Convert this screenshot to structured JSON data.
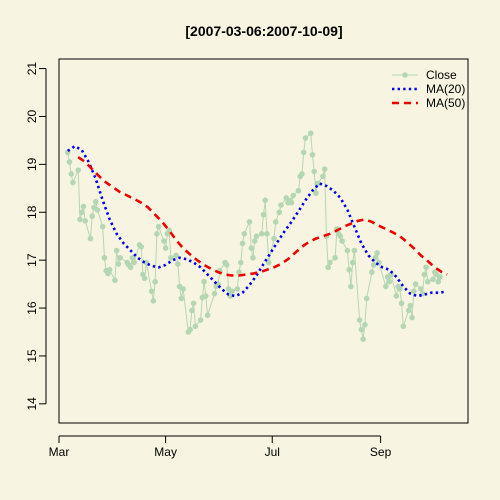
{
  "chart_data": {
    "type": "line",
    "title": "[2007-03-06:2007-10-09]",
    "xlabel": "",
    "ylabel": "",
    "xlim": [
      "2007-03-01",
      "2007-10-21"
    ],
    "ylim": [
      13.6,
      21.2
    ],
    "x_ticks": [
      {
        "date": "2007-03-01",
        "label": "Mar"
      },
      {
        "date": "2007-05-01",
        "label": "May"
      },
      {
        "date": "2007-07-01",
        "label": "Jul"
      },
      {
        "date": "2007-09-01",
        "label": "Sep"
      }
    ],
    "y_ticks": [
      14,
      15,
      16,
      17,
      18,
      19,
      20,
      21
    ],
    "legend": {
      "position": "top-right",
      "entries": [
        {
          "label": "Close",
          "style": "line-with-points",
          "color": "#B5D6B2"
        },
        {
          "label": "MA(20)",
          "style": "dotted",
          "color": "#0000EE"
        },
        {
          "label": "MA(50)",
          "style": "dashed",
          "color": "#EE0000"
        }
      ]
    },
    "series": [
      {
        "name": "Close",
        "color": "#B5D6B2",
        "points": [
          [
            "2007-03-06",
            19.25
          ],
          [
            "2007-03-07",
            19.05
          ],
          [
            "2007-03-08",
            18.8
          ],
          [
            "2007-03-09",
            18.62
          ],
          [
            "2007-03-12",
            18.88
          ],
          [
            "2007-03-13",
            17.85
          ],
          [
            "2007-03-14",
            18.0
          ],
          [
            "2007-03-15",
            18.12
          ],
          [
            "2007-03-16",
            17.82
          ],
          [
            "2007-03-19",
            17.45
          ],
          [
            "2007-03-20",
            17.92
          ],
          [
            "2007-03-21",
            18.1
          ],
          [
            "2007-03-22",
            18.22
          ],
          [
            "2007-03-23",
            18.05
          ],
          [
            "2007-03-26",
            17.7
          ],
          [
            "2007-03-27",
            17.05
          ],
          [
            "2007-03-28",
            16.78
          ],
          [
            "2007-03-29",
            16.72
          ],
          [
            "2007-03-30",
            16.8
          ],
          [
            "2007-04-02",
            16.58
          ],
          [
            "2007-04-03",
            17.2
          ],
          [
            "2007-04-04",
            16.92
          ],
          [
            "2007-04-05",
            17.05
          ],
          [
            "2007-04-09",
            16.95
          ],
          [
            "2007-04-10",
            16.9
          ],
          [
            "2007-04-11",
            16.85
          ],
          [
            "2007-04-12",
            17.05
          ],
          [
            "2007-04-13",
            16.95
          ],
          [
            "2007-04-16",
            17.32
          ],
          [
            "2007-04-17",
            17.28
          ],
          [
            "2007-04-18",
            16.7
          ],
          [
            "2007-04-19",
            16.62
          ],
          [
            "2007-04-20",
            16.95
          ],
          [
            "2007-04-23",
            16.35
          ],
          [
            "2007-04-24",
            16.15
          ],
          [
            "2007-04-25",
            16.55
          ],
          [
            "2007-04-26",
            17.55
          ],
          [
            "2007-04-27",
            17.7
          ],
          [
            "2007-04-30",
            17.4
          ],
          [
            "2007-05-01",
            17.25
          ],
          [
            "2007-05-02",
            17.55
          ],
          [
            "2007-05-03",
            17.62
          ],
          [
            "2007-05-04",
            17.05
          ],
          [
            "2007-05-07",
            17.1
          ],
          [
            "2007-05-08",
            16.92
          ],
          [
            "2007-05-09",
            16.45
          ],
          [
            "2007-05-10",
            16.2
          ],
          [
            "2007-05-11",
            16.4
          ],
          [
            "2007-05-14",
            15.5
          ],
          [
            "2007-05-15",
            15.55
          ],
          [
            "2007-05-16",
            15.95
          ],
          [
            "2007-05-17",
            16.1
          ],
          [
            "2007-05-18",
            15.62
          ],
          [
            "2007-05-21",
            15.75
          ],
          [
            "2007-05-22",
            16.22
          ],
          [
            "2007-05-23",
            16.55
          ],
          [
            "2007-05-24",
            16.25
          ],
          [
            "2007-05-25",
            15.85
          ],
          [
            "2007-05-29",
            16.3
          ],
          [
            "2007-05-30",
            16.45
          ],
          [
            "2007-05-31",
            16.5
          ],
          [
            "2007-06-01",
            16.78
          ],
          [
            "2007-06-04",
            16.95
          ],
          [
            "2007-06-05",
            16.9
          ],
          [
            "2007-06-06",
            16.4
          ],
          [
            "2007-06-07",
            16.25
          ],
          [
            "2007-06-08",
            16.35
          ],
          [
            "2007-06-11",
            16.4
          ],
          [
            "2007-06-12",
            16.75
          ],
          [
            "2007-06-13",
            16.95
          ],
          [
            "2007-06-14",
            17.35
          ],
          [
            "2007-06-15",
            17.55
          ],
          [
            "2007-06-18",
            17.8
          ],
          [
            "2007-06-19",
            17.25
          ],
          [
            "2007-06-20",
            17.05
          ],
          [
            "2007-06-21",
            17.4
          ],
          [
            "2007-06-22",
            17.5
          ],
          [
            "2007-06-25",
            17.55
          ],
          [
            "2007-06-26",
            17.95
          ],
          [
            "2007-06-27",
            18.25
          ],
          [
            "2007-06-28",
            17.55
          ],
          [
            "2007-06-29",
            16.95
          ],
          [
            "2007-07-02",
            17.45
          ],
          [
            "2007-07-03",
            17.8
          ],
          [
            "2007-07-05",
            18.0
          ],
          [
            "2007-07-06",
            18.15
          ],
          [
            "2007-07-09",
            18.3
          ],
          [
            "2007-07-10",
            18.2
          ],
          [
            "2007-07-11",
            18.25
          ],
          [
            "2007-07-12",
            18.2
          ],
          [
            "2007-07-13",
            18.35
          ],
          [
            "2007-07-16",
            18.45
          ],
          [
            "2007-07-17",
            18.75
          ],
          [
            "2007-07-18",
            18.8
          ],
          [
            "2007-07-19",
            19.25
          ],
          [
            "2007-07-20",
            19.55
          ],
          [
            "2007-07-23",
            19.65
          ],
          [
            "2007-07-24",
            19.2
          ],
          [
            "2007-07-25",
            18.85
          ],
          [
            "2007-07-26",
            18.4
          ],
          [
            "2007-07-27",
            18.6
          ],
          [
            "2007-07-30",
            18.75
          ],
          [
            "2007-07-31",
            18.9
          ],
          [
            "2007-08-01",
            17.5
          ],
          [
            "2007-08-02",
            16.85
          ],
          [
            "2007-08-03",
            16.95
          ],
          [
            "2007-08-06",
            17.05
          ],
          [
            "2007-08-07",
            17.65
          ],
          [
            "2007-08-08",
            17.55
          ],
          [
            "2007-08-09",
            17.5
          ],
          [
            "2007-08-10",
            17.4
          ],
          [
            "2007-08-13",
            17.2
          ],
          [
            "2007-08-14",
            16.8
          ],
          [
            "2007-08-15",
            16.45
          ],
          [
            "2007-08-16",
            16.95
          ],
          [
            "2007-08-17",
            17.2
          ],
          [
            "2007-08-20",
            15.75
          ],
          [
            "2007-08-21",
            15.55
          ],
          [
            "2007-08-22",
            15.35
          ],
          [
            "2007-08-23",
            15.65
          ],
          [
            "2007-08-24",
            16.2
          ],
          [
            "2007-08-27",
            16.75
          ],
          [
            "2007-08-28",
            16.9
          ],
          [
            "2007-08-29",
            17.05
          ],
          [
            "2007-08-30",
            17.15
          ],
          [
            "2007-08-31",
            16.95
          ],
          [
            "2007-09-04",
            16.45
          ],
          [
            "2007-09-05",
            16.65
          ],
          [
            "2007-09-06",
            16.55
          ],
          [
            "2007-09-07",
            16.7
          ],
          [
            "2007-09-10",
            16.25
          ],
          [
            "2007-09-11",
            16.45
          ],
          [
            "2007-09-12",
            16.4
          ],
          [
            "2007-09-13",
            16.1
          ],
          [
            "2007-09-14",
            15.62
          ],
          [
            "2007-09-17",
            15.95
          ],
          [
            "2007-09-18",
            16.05
          ],
          [
            "2007-09-19",
            15.8
          ],
          [
            "2007-09-20",
            16.35
          ],
          [
            "2007-09-21",
            16.5
          ],
          [
            "2007-09-24",
            16.4
          ],
          [
            "2007-09-25",
            16.3
          ],
          [
            "2007-09-26",
            16.7
          ],
          [
            "2007-09-27",
            16.85
          ],
          [
            "2007-09-28",
            16.55
          ],
          [
            "2007-10-01",
            16.6
          ],
          [
            "2007-10-02",
            16.75
          ],
          [
            "2007-10-03",
            16.7
          ],
          [
            "2007-10-04",
            16.55
          ],
          [
            "2007-10-05",
            16.65
          ]
        ]
      },
      {
        "name": "MA(20)",
        "color": "#0000EE",
        "points": [
          [
            "2007-03-06",
            19.28
          ],
          [
            "2007-03-10",
            19.38
          ],
          [
            "2007-03-14",
            19.3
          ],
          [
            "2007-03-18",
            19.05
          ],
          [
            "2007-03-22",
            18.7
          ],
          [
            "2007-03-26",
            18.25
          ],
          [
            "2007-03-30",
            17.85
          ],
          [
            "2007-04-03",
            17.55
          ],
          [
            "2007-04-07",
            17.35
          ],
          [
            "2007-04-11",
            17.2
          ],
          [
            "2007-04-15",
            17.05
          ],
          [
            "2007-04-19",
            16.95
          ],
          [
            "2007-04-23",
            16.88
          ],
          [
            "2007-04-27",
            16.85
          ],
          [
            "2007-05-01",
            16.9
          ],
          [
            "2007-05-05",
            17.0
          ],
          [
            "2007-05-09",
            17.05
          ],
          [
            "2007-05-13",
            17.02
          ],
          [
            "2007-05-17",
            16.95
          ],
          [
            "2007-05-21",
            16.85
          ],
          [
            "2007-05-25",
            16.7
          ],
          [
            "2007-05-29",
            16.55
          ],
          [
            "2007-06-02",
            16.4
          ],
          [
            "2007-06-06",
            16.28
          ],
          [
            "2007-06-10",
            16.25
          ],
          [
            "2007-06-14",
            16.32
          ],
          [
            "2007-06-18",
            16.48
          ],
          [
            "2007-06-22",
            16.68
          ],
          [
            "2007-06-26",
            16.92
          ],
          [
            "2007-06-30",
            17.15
          ],
          [
            "2007-07-04",
            17.38
          ],
          [
            "2007-07-08",
            17.6
          ],
          [
            "2007-07-12",
            17.8
          ],
          [
            "2007-07-16",
            18.02
          ],
          [
            "2007-07-20",
            18.25
          ],
          [
            "2007-07-24",
            18.45
          ],
          [
            "2007-07-28",
            18.6
          ],
          [
            "2007-08-01",
            18.55
          ],
          [
            "2007-08-05",
            18.45
          ],
          [
            "2007-08-09",
            18.3
          ],
          [
            "2007-08-13",
            18.05
          ],
          [
            "2007-08-17",
            17.7
          ],
          [
            "2007-08-21",
            17.35
          ],
          [
            "2007-08-25",
            17.1
          ],
          [
            "2007-08-29",
            16.95
          ],
          [
            "2007-09-02",
            16.85
          ],
          [
            "2007-09-06",
            16.8
          ],
          [
            "2007-09-10",
            16.65
          ],
          [
            "2007-09-14",
            16.45
          ],
          [
            "2007-09-18",
            16.3
          ],
          [
            "2007-09-22",
            16.25
          ],
          [
            "2007-09-26",
            16.28
          ],
          [
            "2007-09-30",
            16.32
          ],
          [
            "2007-10-04",
            16.32
          ],
          [
            "2007-10-08",
            16.34
          ]
        ]
      },
      {
        "name": "MA(50)",
        "color": "#EE0000",
        "points": [
          [
            "2007-03-12",
            19.15
          ],
          [
            "2007-03-16",
            19.05
          ],
          [
            "2007-03-20",
            18.9
          ],
          [
            "2007-03-24",
            18.75
          ],
          [
            "2007-03-28",
            18.62
          ],
          [
            "2007-04-01",
            18.52
          ],
          [
            "2007-04-05",
            18.42
          ],
          [
            "2007-04-09",
            18.35
          ],
          [
            "2007-04-13",
            18.28
          ],
          [
            "2007-04-17",
            18.2
          ],
          [
            "2007-04-21",
            18.1
          ],
          [
            "2007-04-25",
            17.95
          ],
          [
            "2007-04-29",
            17.8
          ],
          [
            "2007-05-03",
            17.62
          ],
          [
            "2007-05-07",
            17.42
          ],
          [
            "2007-05-11",
            17.25
          ],
          [
            "2007-05-15",
            17.12
          ],
          [
            "2007-05-19",
            17.0
          ],
          [
            "2007-05-23",
            16.9
          ],
          [
            "2007-05-27",
            16.82
          ],
          [
            "2007-05-31",
            16.75
          ],
          [
            "2007-06-04",
            16.7
          ],
          [
            "2007-06-08",
            16.68
          ],
          [
            "2007-06-12",
            16.68
          ],
          [
            "2007-06-16",
            16.7
          ],
          [
            "2007-06-20",
            16.72
          ],
          [
            "2007-06-24",
            16.75
          ],
          [
            "2007-06-28",
            16.8
          ],
          [
            "2007-07-02",
            16.85
          ],
          [
            "2007-07-06",
            16.92
          ],
          [
            "2007-07-10",
            17.02
          ],
          [
            "2007-07-14",
            17.15
          ],
          [
            "2007-07-18",
            17.28
          ],
          [
            "2007-07-22",
            17.38
          ],
          [
            "2007-07-26",
            17.45
          ],
          [
            "2007-07-30",
            17.5
          ],
          [
            "2007-08-03",
            17.55
          ],
          [
            "2007-08-07",
            17.62
          ],
          [
            "2007-08-11",
            17.7
          ],
          [
            "2007-08-15",
            17.76
          ],
          [
            "2007-08-19",
            17.82
          ],
          [
            "2007-08-23",
            17.85
          ],
          [
            "2007-08-27",
            17.8
          ],
          [
            "2007-08-31",
            17.72
          ],
          [
            "2007-09-04",
            17.65
          ],
          [
            "2007-09-08",
            17.58
          ],
          [
            "2007-09-12",
            17.5
          ],
          [
            "2007-09-16",
            17.38
          ],
          [
            "2007-09-20",
            17.25
          ],
          [
            "2007-09-24",
            17.1
          ],
          [
            "2007-09-28",
            16.98
          ],
          [
            "2007-10-02",
            16.85
          ],
          [
            "2007-10-06",
            16.75
          ],
          [
            "2007-10-09",
            16.7
          ]
        ]
      }
    ]
  }
}
